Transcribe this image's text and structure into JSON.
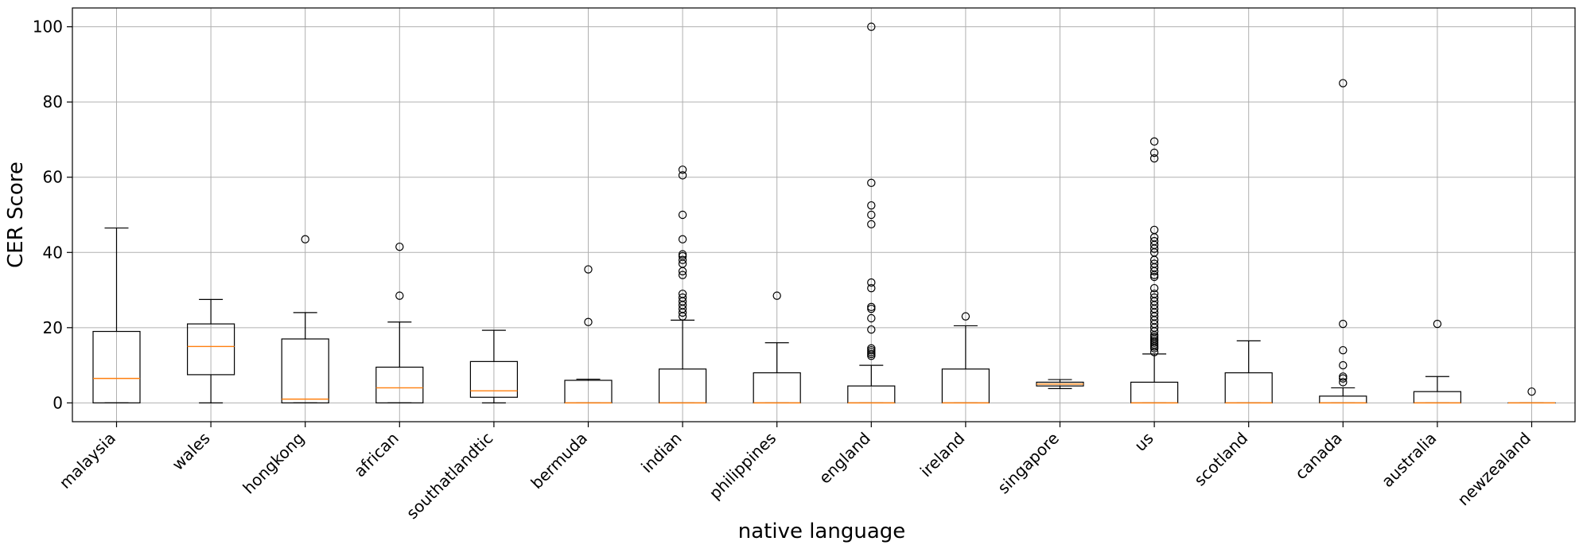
{
  "chart_data": {
    "type": "box",
    "xlabel": "native language",
    "ylabel": "CER Score",
    "ylim": [
      -5,
      105
    ],
    "yticks": [
      0,
      20,
      40,
      60,
      80,
      100
    ],
    "grid": true,
    "colors": {
      "box": "#000000",
      "median": "#ff7f0e",
      "grid": "#b0b0b0"
    },
    "categories": [
      "malaysia",
      "wales",
      "hongkong",
      "african",
      "southatlandtic",
      "bermuda",
      "indian",
      "philippines",
      "england",
      "ireland",
      "singapore",
      "us",
      "scotland",
      "canada",
      "australia",
      "newzealand"
    ],
    "boxes": [
      {
        "q1": 0,
        "median": 6.5,
        "q3": 19,
        "whislo": 0,
        "whishi": 46.5,
        "fliers": []
      },
      {
        "q1": 7.5,
        "median": 15,
        "q3": 21,
        "whislo": 0,
        "whishi": 27.5,
        "fliers": []
      },
      {
        "q1": 0,
        "median": 1,
        "q3": 17,
        "whislo": 0,
        "whishi": 24,
        "fliers": [
          43.5
        ]
      },
      {
        "q1": 0,
        "median": 4,
        "q3": 9.5,
        "whislo": 0,
        "whishi": 21.5,
        "fliers": [
          28.5,
          41.5
        ]
      },
      {
        "q1": 1.5,
        "median": 3.2,
        "q3": 11,
        "whislo": 0,
        "whishi": 19.3,
        "fliers": []
      },
      {
        "q1": 0,
        "median": 0,
        "q3": 6,
        "whislo": 0,
        "whishi": 6.3,
        "fliers": [
          21.5,
          35.5
        ]
      },
      {
        "q1": 0,
        "median": 0,
        "q3": 9,
        "whislo": 0,
        "whishi": 22,
        "fliers": [
          23,
          24,
          25,
          26,
          27,
          28,
          29,
          34,
          35,
          37,
          38,
          39,
          39.5,
          43.5,
          50,
          60.5,
          62
        ]
      },
      {
        "q1": 0,
        "median": 0,
        "q3": 8,
        "whislo": 0,
        "whishi": 16,
        "fliers": [
          28.5
        ]
      },
      {
        "q1": 0,
        "median": 0,
        "q3": 4.5,
        "whislo": 0,
        "whishi": 10,
        "fliers": [
          12.5,
          13,
          13.5,
          14,
          14.5,
          19.5,
          22.5,
          25,
          25.5,
          30.5,
          32,
          47.5,
          50,
          52.5,
          58.5,
          100
        ]
      },
      {
        "q1": 0,
        "median": 0,
        "q3": 9,
        "whislo": 0,
        "whishi": 20.5,
        "fliers": [
          23
        ]
      },
      {
        "q1": 4.5,
        "median": 5,
        "q3": 5.5,
        "whislo": 3.8,
        "whishi": 6.2,
        "fliers": []
      },
      {
        "q1": 0,
        "median": 0,
        "q3": 5.5,
        "whislo": 0,
        "whishi": 13,
        "fliers": [
          13.5,
          14.5,
          15,
          15.5,
          16,
          16.5,
          17,
          17.5,
          18,
          19,
          20,
          21,
          22,
          23,
          24,
          25,
          26,
          27,
          28,
          29,
          30.5,
          33.5,
          34,
          35,
          36,
          37,
          38,
          40,
          41,
          42,
          43,
          44,
          46,
          65,
          66.5,
          69.5
        ]
      },
      {
        "q1": 0,
        "median": 0,
        "q3": 8,
        "whislo": 0,
        "whishi": 16.5,
        "fliers": []
      },
      {
        "q1": 0,
        "median": 0,
        "q3": 1.8,
        "whislo": 0,
        "whishi": 4,
        "fliers": [
          5.5,
          6.5,
          7,
          10,
          14,
          21,
          85
        ]
      },
      {
        "q1": 0,
        "median": 0,
        "q3": 3,
        "whislo": 0,
        "whishi": 7,
        "fliers": [
          21
        ]
      },
      {
        "q1": 0,
        "median": 0,
        "q3": 0,
        "whislo": 0,
        "whishi": 0,
        "fliers": [
          3
        ]
      }
    ]
  }
}
